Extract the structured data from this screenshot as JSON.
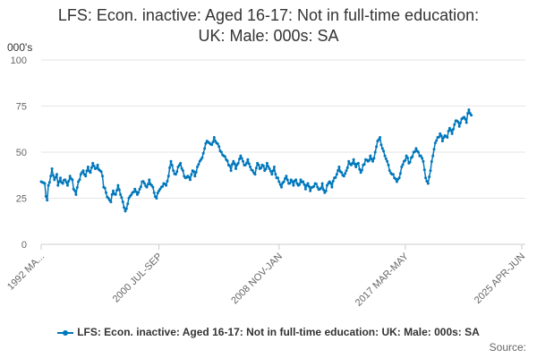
{
  "title_line1": "LFS: Econ. inactive: Aged 16-17: Not in full-time education:",
  "title_line2": "UK: Male: 000s: SA",
  "source_label": "Source:",
  "chart_data": {
    "type": "line",
    "ylabel": "000's",
    "ylim": [
      0,
      100
    ],
    "yticks": [
      0,
      25,
      50,
      75,
      100
    ],
    "x_tick_labels": [
      "1992 MA...",
      "2000 JUL-SEP",
      "2008 NOV-JAN",
      "2017 MAR-MAY",
      "2025 APR-JUN"
    ],
    "x_tick_positions": [
      0,
      98,
      198,
      303,
      400
    ],
    "grid": "horizontal",
    "legend": "bottom",
    "colors": {
      "series": "#0077bb",
      "grid": "#e6e6e6",
      "axis": "#cccccc"
    },
    "series": [
      {
        "name": "LFS: Econ. inactive: Aged 16-17: Not in full-time education: UK: Male: 000s: SA",
        "anchors": [
          [
            0,
            34
          ],
          [
            3,
            33
          ],
          [
            4,
            26
          ],
          [
            5,
            24
          ],
          [
            6,
            32
          ],
          [
            8,
            37
          ],
          [
            9,
            41
          ],
          [
            11,
            35
          ],
          [
            13,
            38
          ],
          [
            14,
            32
          ],
          [
            16,
            36
          ],
          [
            18,
            33
          ],
          [
            20,
            35
          ],
          [
            22,
            32
          ],
          [
            24,
            37
          ],
          [
            26,
            35
          ],
          [
            27,
            30
          ],
          [
            29,
            27
          ],
          [
            31,
            34
          ],
          [
            33,
            38
          ],
          [
            35,
            40
          ],
          [
            37,
            37
          ],
          [
            39,
            42
          ],
          [
            41,
            39
          ],
          [
            43,
            44
          ],
          [
            45,
            41
          ],
          [
            47,
            43
          ],
          [
            49,
            40
          ],
          [
            51,
            37
          ],
          [
            52,
            31
          ],
          [
            54,
            28
          ],
          [
            56,
            25
          ],
          [
            58,
            23
          ],
          [
            60,
            29
          ],
          [
            62,
            27
          ],
          [
            64,
            32
          ],
          [
            66,
            27
          ],
          [
            68,
            23
          ],
          [
            70,
            18
          ],
          [
            72,
            22
          ],
          [
            74,
            26
          ],
          [
            76,
            28
          ],
          [
            78,
            30
          ],
          [
            80,
            27
          ],
          [
            82,
            30
          ],
          [
            84,
            34
          ],
          [
            86,
            33
          ],
          [
            88,
            31
          ],
          [
            90,
            35
          ],
          [
            92,
            32
          ],
          [
            94,
            28
          ],
          [
            96,
            25
          ],
          [
            98,
            29
          ],
          [
            100,
            31
          ],
          [
            102,
            33
          ],
          [
            104,
            32
          ],
          [
            106,
            37
          ],
          [
            108,
            45
          ],
          [
            110,
            40
          ],
          [
            112,
            38
          ],
          [
            114,
            42
          ],
          [
            116,
            44
          ],
          [
            118,
            40
          ],
          [
            120,
            36
          ],
          [
            122,
            37
          ],
          [
            124,
            35
          ],
          [
            126,
            40
          ],
          [
            128,
            37
          ],
          [
            130,
            42
          ],
          [
            132,
            45
          ],
          [
            134,
            47
          ],
          [
            136,
            52
          ],
          [
            138,
            56
          ],
          [
            140,
            55
          ],
          [
            142,
            54
          ],
          [
            144,
            58
          ],
          [
            146,
            55
          ],
          [
            148,
            53
          ],
          [
            150,
            50
          ],
          [
            152,
            48
          ],
          [
            154,
            46
          ],
          [
            156,
            43
          ],
          [
            158,
            40
          ],
          [
            160,
            45
          ],
          [
            162,
            41
          ],
          [
            164,
            44
          ],
          [
            166,
            48
          ],
          [
            168,
            45
          ],
          [
            170,
            43
          ],
          [
            172,
            46
          ],
          [
            174,
            42
          ],
          [
            176,
            40
          ],
          [
            178,
            38
          ],
          [
            180,
            44
          ],
          [
            182,
            41
          ],
          [
            184,
            43
          ],
          [
            186,
            40
          ],
          [
            188,
            44
          ],
          [
            190,
            41
          ],
          [
            192,
            38
          ],
          [
            194,
            42
          ],
          [
            196,
            36
          ],
          [
            198,
            34
          ],
          [
            200,
            31
          ],
          [
            202,
            34
          ],
          [
            204,
            37
          ],
          [
            206,
            33
          ],
          [
            208,
            35
          ],
          [
            210,
            32
          ],
          [
            212,
            35
          ],
          [
            214,
            32
          ],
          [
            216,
            35
          ],
          [
            218,
            34
          ],
          [
            220,
            30
          ],
          [
            222,
            33
          ],
          [
            224,
            29
          ],
          [
            226,
            31
          ],
          [
            228,
            33
          ],
          [
            230,
            31
          ],
          [
            232,
            30
          ],
          [
            234,
            33
          ],
          [
            236,
            28
          ],
          [
            238,
            32
          ],
          [
            240,
            34
          ],
          [
            242,
            31
          ],
          [
            244,
            36
          ],
          [
            246,
            38
          ],
          [
            248,
            42
          ],
          [
            250,
            39
          ],
          [
            252,
            37
          ],
          [
            254,
            40
          ],
          [
            256,
            45
          ],
          [
            258,
            43
          ],
          [
            260,
            46
          ],
          [
            262,
            42
          ],
          [
            264,
            44
          ],
          [
            266,
            39
          ],
          [
            268,
            43
          ],
          [
            270,
            46
          ],
          [
            272,
            45
          ],
          [
            274,
            48
          ],
          [
            276,
            45
          ],
          [
            278,
            50
          ],
          [
            280,
            56
          ],
          [
            282,
            58
          ],
          [
            284,
            52
          ],
          [
            286,
            48
          ],
          [
            288,
            45
          ],
          [
            290,
            40
          ],
          [
            292,
            38
          ],
          [
            294,
            36
          ],
          [
            296,
            34
          ],
          [
            298,
            36
          ],
          [
            300,
            42
          ],
          [
            302,
            45
          ],
          [
            304,
            48
          ],
          [
            306,
            44
          ],
          [
            308,
            47
          ],
          [
            310,
            50
          ],
          [
            312,
            52
          ],
          [
            314,
            50
          ],
          [
            316,
            48
          ],
          [
            318,
            45
          ],
          [
            320,
            36
          ],
          [
            322,
            33
          ],
          [
            324,
            40
          ],
          [
            326,
            48
          ],
          [
            328,
            55
          ],
          [
            330,
            58
          ],
          [
            332,
            60
          ],
          [
            334,
            56
          ],
          [
            336,
            59
          ],
          [
            338,
            58
          ],
          [
            340,
            63
          ],
          [
            342,
            60
          ],
          [
            344,
            65
          ],
          [
            346,
            67
          ],
          [
            348,
            64
          ],
          [
            350,
            68
          ],
          [
            352,
            69
          ],
          [
            354,
            66
          ],
          [
            355,
            71
          ],
          [
            356,
            73
          ],
          [
            357,
            71
          ],
          [
            358,
            70
          ]
        ]
      }
    ]
  }
}
